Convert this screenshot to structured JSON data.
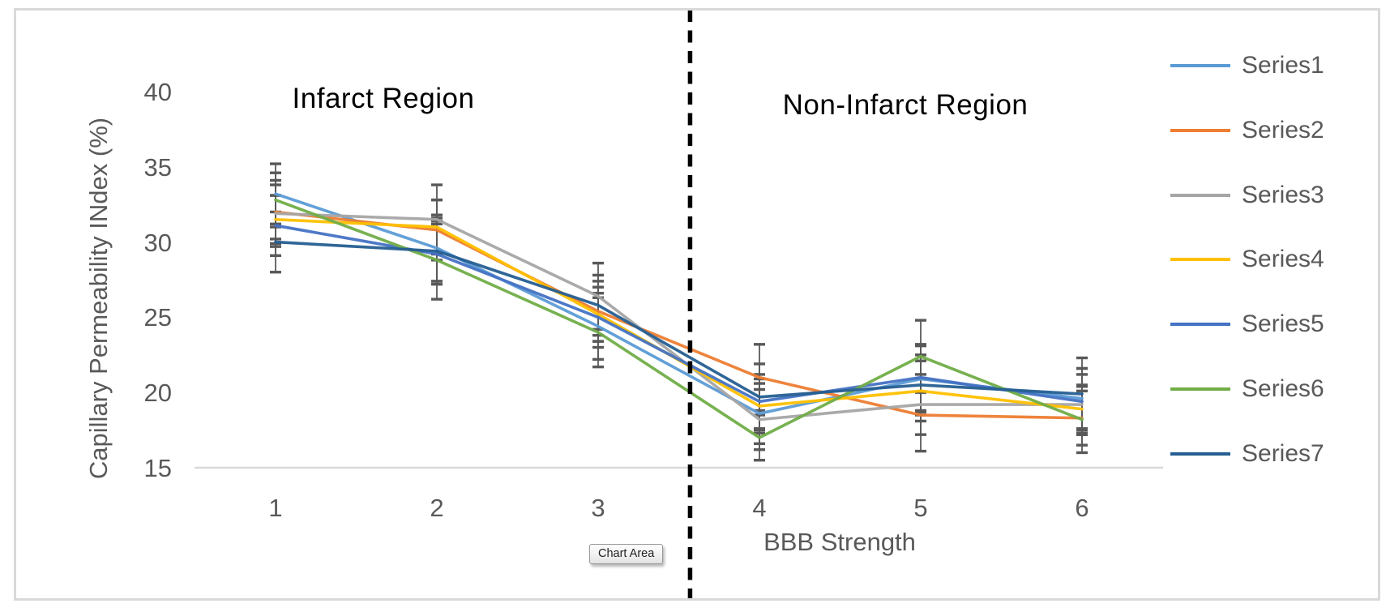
{
  "chart_data": {
    "type": "line",
    "title": "",
    "xlabel": "BBB Strength",
    "ylabel": "Capillary Permeability INdex (%)",
    "x_categories": [
      "1",
      "2",
      "3",
      "4",
      "5",
      "6"
    ],
    "y_ticks": [
      "40",
      "35",
      "30",
      "25",
      "20",
      "15"
    ],
    "ylim": [
      15,
      40
    ],
    "grid": false,
    "legend_position": "right",
    "annotations": {
      "left_region_label": "Infarct Region",
      "right_region_label": "Non-Infarct Region",
      "separator_x": 3.57,
      "separator_style": "dashed-black-vertical"
    },
    "series": [
      {
        "name": "Series1",
        "color": "#5B9BD5",
        "values": [
          33.2,
          29.6,
          24.4,
          18.6,
          20.9,
          19.6
        ],
        "errors": [
          2.0,
          2.2,
          2.2,
          2.0,
          2.2,
          2.0
        ]
      },
      {
        "name": "Series2",
        "color": "#ED7D31",
        "values": [
          32.0,
          30.8,
          25.4,
          21.0,
          18.5,
          18.3
        ],
        "errors": [
          1.8,
          2.0,
          2.0,
          2.2,
          2.4,
          1.8
        ]
      },
      {
        "name": "Series3",
        "color": "#A5A5A5",
        "values": [
          31.9,
          31.5,
          26.4,
          18.2,
          19.2,
          19.2
        ],
        "errors": [
          2.2,
          2.3,
          2.2,
          2.0,
          2.0,
          2.0
        ]
      },
      {
        "name": "Series4",
        "color": "#FFC000",
        "values": [
          31.5,
          31.0,
          25.2,
          19.1,
          20.1,
          18.9
        ],
        "errors": [
          1.6,
          1.8,
          1.8,
          1.8,
          2.0,
          1.6
        ]
      },
      {
        "name": "Series5",
        "color": "#4472C4",
        "values": [
          31.1,
          29.2,
          25.0,
          19.4,
          21.0,
          19.4
        ],
        "errors": [
          2.0,
          2.0,
          2.0,
          1.8,
          2.2,
          2.2
        ]
      },
      {
        "name": "Series6",
        "color": "#70AD47",
        "values": [
          32.8,
          28.8,
          24.0,
          17.0,
          22.4,
          18.2
        ],
        "errors": [
          1.8,
          2.6,
          2.3,
          1.5,
          2.4,
          2.2
        ]
      },
      {
        "name": "Series7",
        "color": "#255E91",
        "values": [
          30.0,
          29.4,
          25.8,
          19.7,
          20.5,
          19.9
        ],
        "errors": [
          2.0,
          2.2,
          2.0,
          2.2,
          2.0,
          2.4
        ]
      }
    ]
  },
  "tooltip": {
    "label": "Chart Area"
  },
  "colors": {
    "axis_text": "#595959",
    "error_bar": "#595959",
    "axis_line": "#D9D9D9",
    "chart_border": "#D9D9D9",
    "separator": "#000000",
    "region_label_text": "#000000"
  }
}
